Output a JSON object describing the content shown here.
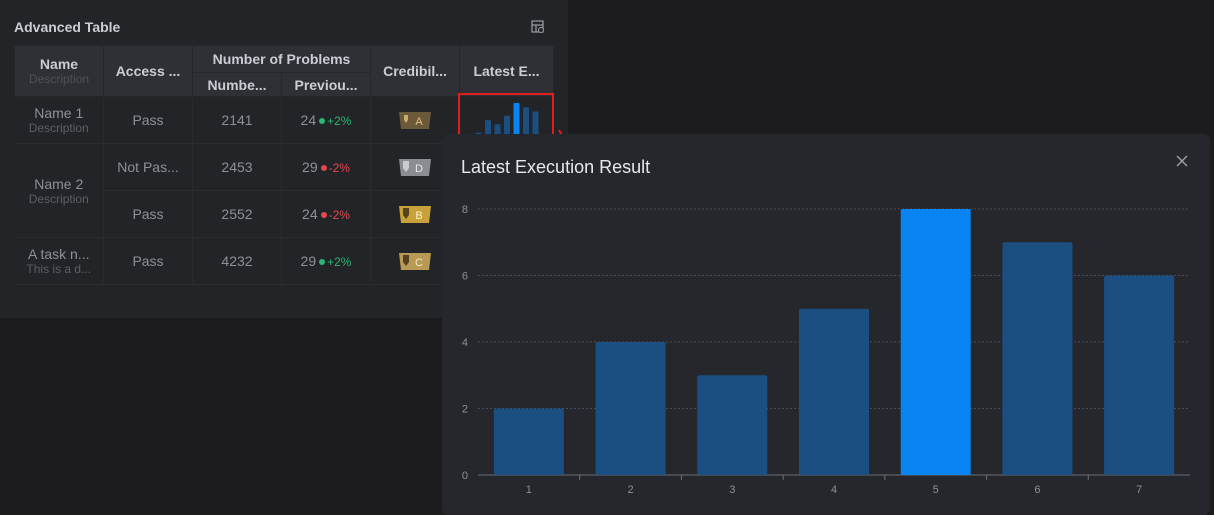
{
  "panel": {
    "title": "Advanced Table",
    "settings_icon": "table-settings-icon"
  },
  "table": {
    "headers": {
      "name": "Name",
      "name_sub": "Description",
      "access": "Access ...",
      "problems_group": "Number of Problems",
      "number": "Numbe...",
      "previous": "Previou...",
      "credibility": "Credibil...",
      "latest": "Latest E..."
    },
    "rows": [
      {
        "name": "Name 1",
        "desc": "Description",
        "access": "Pass",
        "number": "2141",
        "previous": "24",
        "trend": "+2%",
        "trend_dir": "up",
        "grade": "A",
        "grade_color": "#6b5a3a"
      },
      {
        "name": "Name 2",
        "desc": "Description",
        "access": "Not Pas...",
        "number": "2453",
        "previous": "29",
        "trend": "-2%",
        "trend_dir": "down",
        "grade": "D",
        "grade_color": "#8a8d92"
      },
      {
        "name": "",
        "desc": "",
        "access": "Pass",
        "number": "2552",
        "previous": "24",
        "trend": "-2%",
        "trend_dir": "down",
        "grade": "B",
        "grade_color": "#c9a13a"
      },
      {
        "name": "A task n...",
        "desc": "This is a d...",
        "access": "Pass",
        "number": "4232",
        "previous": "29",
        "trend": "+2%",
        "trend_dir": "up",
        "grade": "C",
        "grade_color": "#b99a55"
      }
    ],
    "colors": {
      "up": "#2bb673",
      "down": "#e5484d"
    }
  },
  "sparkline": {
    "values": [
      1,
      4,
      3,
      5,
      8,
      7,
      6
    ],
    "highlight_index": 4
  },
  "modal": {
    "title": "Latest Execution Result",
    "close_icon": "close-icon"
  },
  "chart_data": {
    "type": "bar",
    "title": "Latest Execution Result",
    "categories": [
      "1",
      "2",
      "3",
      "4",
      "5",
      "6",
      "7"
    ],
    "values": [
      2,
      4,
      3,
      5,
      8,
      7,
      6
    ],
    "ylim": [
      0,
      8
    ],
    "yticks": [
      "0",
      "2",
      "4",
      "6",
      "8"
    ],
    "grid": true,
    "highlight_index": 4,
    "colors": {
      "bar": "#1b4f82",
      "highlight": "#0b84f3"
    }
  }
}
